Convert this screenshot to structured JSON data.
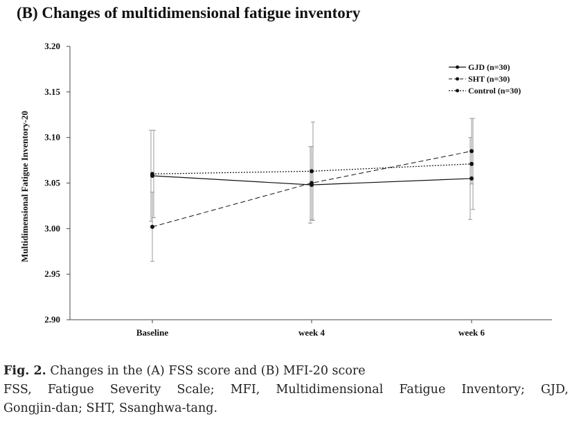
{
  "chart_data": {
    "type": "line",
    "title": "(B) Changes of multidimensional fatigue inventory",
    "ylabel": "Multidimensional Fatigue Inventory-20",
    "xlabel": "",
    "categories": [
      "Baseline",
      "week 4",
      "week 6"
    ],
    "ylim": [
      2.9,
      3.2
    ],
    "yticks": [
      "3.20",
      "3.15",
      "3.10",
      "3.05",
      "3.00",
      "2.95",
      "2.90"
    ],
    "grid": false,
    "legend_position": "top-right",
    "series": [
      {
        "name": "GJD (n=30)",
        "style": "solid",
        "values": [
          3.058,
          3.048,
          3.055
        ],
        "error": [
          0.05,
          0.042,
          0.045
        ]
      },
      {
        "name": "SHT (n=30)",
        "style": "dashed",
        "values": [
          3.002,
          3.05,
          3.085
        ],
        "error": [
          0.038,
          0.04,
          0.036
        ]
      },
      {
        "name": "Control (n=30)",
        "style": "dotted",
        "values": [
          3.06,
          3.063,
          3.071
        ],
        "error": [
          0.048,
          0.054,
          0.05
        ]
      }
    ]
  },
  "caption": {
    "fig_label": "Fig. 2.",
    "fig_text": "Changes in the (A) FSS score and (B) MFI-20 score",
    "abbrev_line1": "FSS, Fatigue Severity Scale; MFI, Multidimensional Fatigue Inventory; GJD,",
    "abbrev_line2": "Gongjin-dan; SHT, Ssanghwa-tang."
  },
  "colors": {
    "line": "#111111",
    "axis": "#444444",
    "error_bar": "#999999"
  }
}
